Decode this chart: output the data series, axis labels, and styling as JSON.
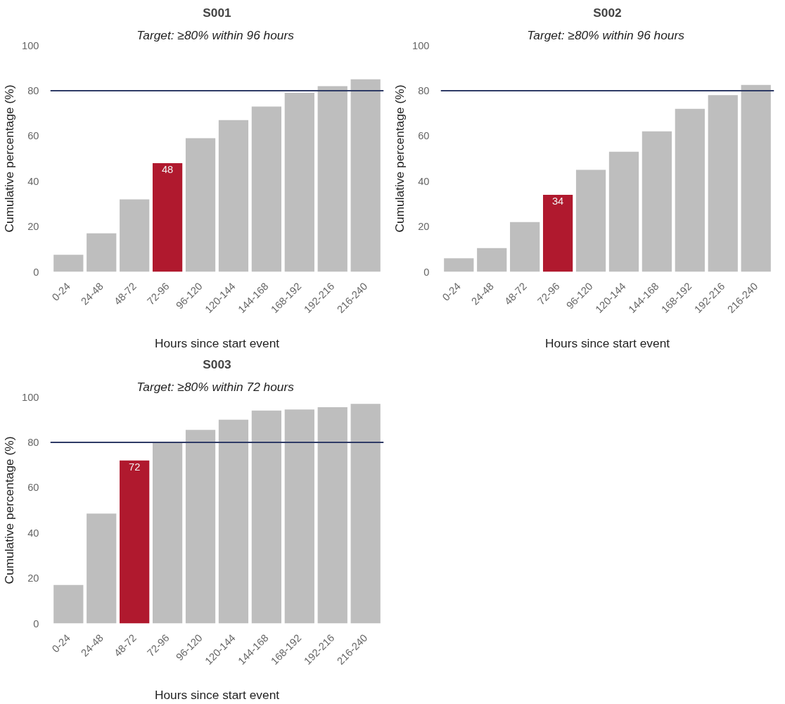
{
  "chart_data": [
    {
      "type": "bar",
      "title": "S001",
      "subtitle": "Target:  ≥80% within 96 hours",
      "xlabel": "Hours since start event",
      "ylabel": "Cumulative percentage (%)",
      "categories": [
        "0-24",
        "24-48",
        "48-72",
        "72-96",
        "96-120",
        "120-144",
        "144-168",
        "168-192",
        "192-216",
        "216-240"
      ],
      "values": [
        7.5,
        17,
        32,
        48,
        59,
        67,
        73,
        79,
        82,
        85
      ],
      "colors": [
        "#bebebe",
        "#bebebe",
        "#bebebe",
        "#b0192e",
        "#bebebe",
        "#bebebe",
        "#bebebe",
        "#bebebe",
        "#bebebe",
        "#bebebe"
      ],
      "value_labels": [
        null,
        null,
        null,
        "48",
        null,
        null,
        null,
        null,
        null,
        null
      ],
      "ylim": [
        0,
        100
      ],
      "yticks": [
        0,
        20,
        40,
        60,
        80,
        100
      ],
      "grid": false,
      "legend": false,
      "ref_lines": [
        {
          "axis": "y",
          "value": 80,
          "label": null,
          "color": "#2f3b66"
        }
      ]
    },
    {
      "type": "bar",
      "title": "S002",
      "subtitle": "Target:  ≥80% within 96 hours",
      "xlabel": "Hours since start event",
      "ylabel": "Cumulative percentage (%)",
      "categories": [
        "0-24",
        "24-48",
        "48-72",
        "72-96",
        "96-120",
        "120-144",
        "144-168",
        "168-192",
        "192-216",
        "216-240"
      ],
      "values": [
        6,
        10.5,
        22,
        34,
        45,
        53,
        62,
        72,
        78,
        82.5
      ],
      "colors": [
        "#bebebe",
        "#bebebe",
        "#bebebe",
        "#b0192e",
        "#bebebe",
        "#bebebe",
        "#bebebe",
        "#bebebe",
        "#bebebe",
        "#bebebe"
      ],
      "value_labels": [
        null,
        null,
        null,
        "34",
        null,
        null,
        null,
        null,
        null,
        null
      ],
      "ylim": [
        0,
        100
      ],
      "yticks": [
        0,
        20,
        40,
        60,
        80,
        100
      ],
      "grid": false,
      "legend": false,
      "ref_lines": [
        {
          "axis": "y",
          "value": 80,
          "label": null,
          "color": "#2f3b66"
        }
      ]
    },
    {
      "type": "bar",
      "title": "S003",
      "subtitle": "Target:  ≥80% within 72 hours",
      "xlabel": "Hours since start event",
      "ylabel": "Cumulative percentage (%)",
      "categories": [
        "0-24",
        "24-48",
        "48-72",
        "72-96",
        "96-120",
        "120-144",
        "144-168",
        "168-192",
        "192-216",
        "216-240"
      ],
      "values": [
        17,
        48.5,
        72,
        80,
        85.5,
        90,
        94,
        94.5,
        95.5,
        97
      ],
      "colors": [
        "#bebebe",
        "#bebebe",
        "#b0192e",
        "#bebebe",
        "#bebebe",
        "#bebebe",
        "#bebebe",
        "#bebebe",
        "#bebebe",
        "#bebebe"
      ],
      "value_labels": [
        null,
        null,
        "72",
        null,
        null,
        null,
        null,
        null,
        null,
        null
      ],
      "ylim": [
        0,
        100
      ],
      "yticks": [
        0,
        20,
        40,
        60,
        80,
        100
      ],
      "grid": false,
      "legend": false,
      "ref_lines": [
        {
          "axis": "y",
          "value": 80,
          "label": null,
          "color": "#2f3b66"
        }
      ]
    }
  ]
}
